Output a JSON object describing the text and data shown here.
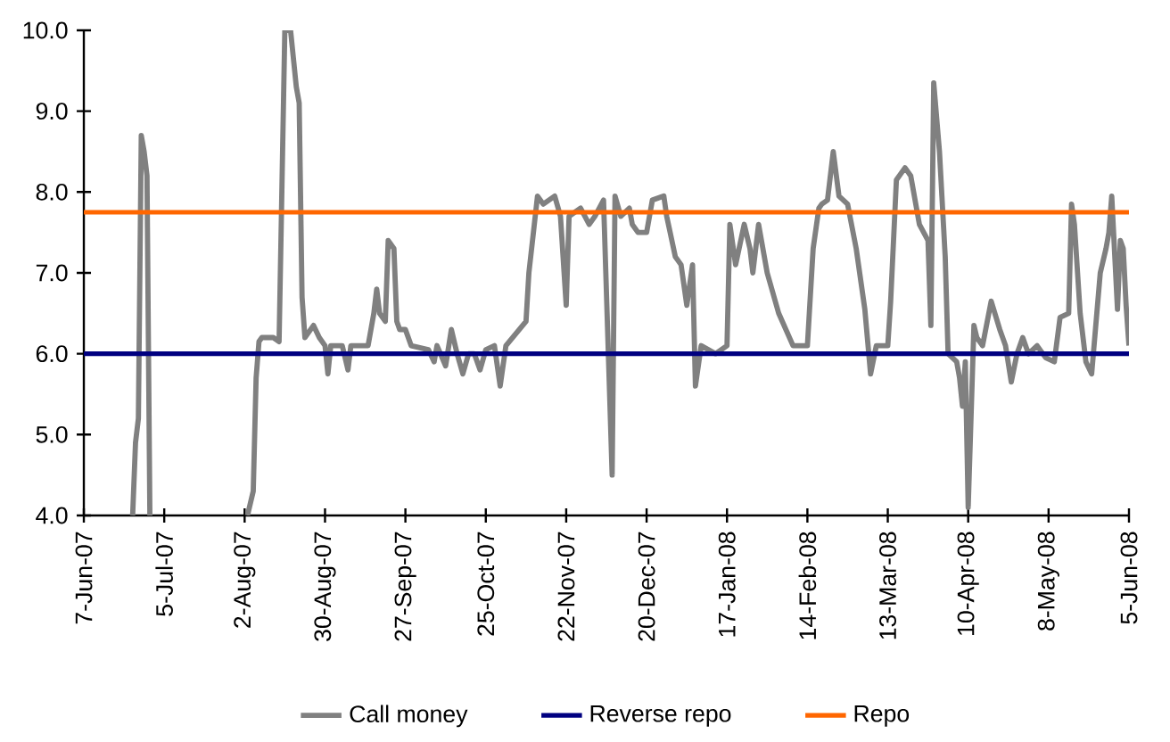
{
  "chart_data": {
    "type": "line",
    "x": [
      "2007-06-24",
      "2007-06-25",
      "2007-06-26",
      "2007-06-27",
      "2007-06-28",
      "2007-06-29",
      "2007-06-30",
      "2007-07-01",
      "2007-08-03",
      "2007-08-05",
      "2007-08-06",
      "2007-08-07",
      "2007-08-08",
      "2007-08-12",
      "2007-08-14",
      "2007-08-16",
      "2007-08-18",
      "2007-08-20",
      "2007-08-21",
      "2007-08-22",
      "2007-08-23",
      "2007-08-26",
      "2007-08-28",
      "2007-08-30",
      "2007-08-31",
      "2007-09-01",
      "2007-09-05",
      "2007-09-07",
      "2007-09-08",
      "2007-09-14",
      "2007-09-16",
      "2007-09-17",
      "2007-09-18",
      "2007-09-20",
      "2007-09-21",
      "2007-09-23",
      "2007-09-24",
      "2007-09-25",
      "2007-09-27",
      "2007-09-29",
      "2007-10-05",
      "2007-10-07",
      "2007-10-08",
      "2007-10-11",
      "2007-10-13",
      "2007-10-15",
      "2007-10-17",
      "2007-10-19",
      "2007-10-21",
      "2007-10-23",
      "2007-10-25",
      "2007-10-28",
      "2007-10-30",
      "2007-11-01",
      "2007-11-08",
      "2007-11-09",
      "2007-11-12",
      "2007-11-14",
      "2007-11-18",
      "2007-11-20",
      "2007-11-22",
      "2007-11-23",
      "2007-11-27",
      "2007-11-30",
      "2007-12-02",
      "2007-12-05",
      "2007-12-08",
      "2007-12-09",
      "2007-12-11",
      "2007-12-14",
      "2007-12-15",
      "2007-12-17",
      "2007-12-20",
      "2007-12-22",
      "2007-12-26",
      "2007-12-27",
      "2007-12-30",
      "2008-01-01",
      "2008-01-03",
      "2008-01-05",
      "2008-01-06",
      "2008-01-08",
      "2008-01-13",
      "2008-01-17",
      "2008-01-18",
      "2008-01-20",
      "2008-01-23",
      "2008-01-25",
      "2008-01-26",
      "2008-01-28",
      "2008-01-31",
      "2008-02-04",
      "2008-02-09",
      "2008-02-14",
      "2008-02-16",
      "2008-02-18",
      "2008-02-19",
      "2008-02-21",
      "2008-02-23",
      "2008-02-25",
      "2008-02-28",
      "2008-03-02",
      "2008-03-05",
      "2008-03-07",
      "2008-03-09",
      "2008-03-13",
      "2008-03-14",
      "2008-03-16",
      "2008-03-19",
      "2008-03-21",
      "2008-03-24",
      "2008-03-27",
      "2008-03-28",
      "2008-03-29",
      "2008-03-31",
      "2008-04-02",
      "2008-04-03",
      "2008-04-06",
      "2008-04-07",
      "2008-04-08",
      "2008-04-09",
      "2008-04-10",
      "2008-04-12",
      "2008-04-13",
      "2008-04-15",
      "2008-04-18",
      "2008-04-21",
      "2008-04-23",
      "2008-04-25",
      "2008-04-27",
      "2008-04-29",
      "2008-05-01",
      "2008-05-04",
      "2008-05-07",
      "2008-05-10",
      "2008-05-12",
      "2008-05-15",
      "2008-05-16",
      "2008-05-17",
      "2008-05-19",
      "2008-05-21",
      "2008-05-23",
      "2008-05-26",
      "2008-05-28",
      "2008-05-29",
      "2008-05-30",
      "2008-06-01",
      "2008-06-02",
      "2008-06-03",
      "2008-06-04",
      "2008-06-05"
    ],
    "series": [
      {
        "name": "Call money",
        "color": "#808080",
        "values": [
          4.0,
          4.9,
          5.2,
          8.7,
          8.5,
          8.2,
          4.0,
          null,
          4.0,
          4.3,
          5.7,
          6.15,
          6.2,
          6.2,
          6.15,
          10.0,
          10.0,
          9.3,
          9.1,
          6.7,
          6.2,
          6.35,
          6.2,
          6.1,
          5.75,
          6.1,
          6.1,
          5.8,
          6.1,
          6.1,
          6.5,
          6.8,
          6.5,
          6.4,
          7.4,
          7.3,
          6.4,
          6.3,
          6.3,
          6.1,
          6.05,
          5.9,
          6.1,
          5.85,
          6.3,
          6.0,
          5.75,
          6.0,
          6.0,
          5.8,
          6.05,
          6.1,
          5.6,
          6.1,
          6.4,
          7.0,
          7.95,
          7.85,
          7.95,
          7.7,
          6.6,
          7.7,
          7.8,
          7.6,
          7.7,
          7.9,
          4.5,
          7.95,
          7.7,
          7.8,
          7.6,
          7.5,
          7.5,
          7.9,
          7.95,
          7.7,
          7.2,
          7.1,
          6.6,
          7.1,
          5.6,
          6.1,
          6.0,
          6.1,
          7.6,
          7.1,
          7.6,
          7.3,
          7.0,
          7.6,
          7.0,
          6.5,
          6.1,
          6.1,
          7.3,
          7.8,
          7.85,
          7.9,
          8.5,
          7.95,
          7.85,
          7.3,
          6.55,
          5.75,
          6.1,
          6.1,
          6.65,
          8.15,
          8.3,
          8.2,
          7.6,
          7.4,
          6.35,
          9.35,
          8.5,
          7.2,
          6.0,
          5.9,
          5.7,
          5.35,
          5.9,
          4.1,
          6.35,
          6.2,
          6.1,
          6.65,
          6.3,
          6.1,
          5.65,
          6.0,
          6.2,
          6.0,
          6.1,
          5.95,
          5.9,
          6.45,
          6.5,
          7.85,
          7.6,
          6.5,
          5.9,
          5.75,
          7.0,
          7.3,
          7.5,
          7.95,
          6.55,
          7.4,
          7.3,
          6.6,
          6.1
        ]
      },
      {
        "name": "Reverse repo",
        "color": "#000080",
        "x": [
          "2007-06-07",
          "2008-06-05"
        ],
        "values": [
          6.0,
          6.0
        ]
      },
      {
        "name": "Repo",
        "color": "#ff6600",
        "x": [
          "2007-06-07",
          "2008-06-05"
        ],
        "values": [
          7.75,
          7.75
        ]
      }
    ],
    "xlim": [
      "2007-06-07",
      "2008-06-05"
    ],
    "xticks": [
      {
        "value": "2007-06-07",
        "label": "7-Jun-07"
      },
      {
        "value": "2007-07-05",
        "label": "5-Jul-07"
      },
      {
        "value": "2007-08-02",
        "label": "2-Aug-07"
      },
      {
        "value": "2007-08-30",
        "label": "30-Aug-07"
      },
      {
        "value": "2007-09-27",
        "label": "27-Sep-07"
      },
      {
        "value": "2007-10-25",
        "label": "25-Oct-07"
      },
      {
        "value": "2007-11-22",
        "label": "22-Nov-07"
      },
      {
        "value": "2007-12-20",
        "label": "20-Dec-07"
      },
      {
        "value": "2008-01-17",
        "label": "17-Jan-08"
      },
      {
        "value": "2008-02-14",
        "label": "14-Feb-08"
      },
      {
        "value": "2008-03-13",
        "label": "13-Mar-08"
      },
      {
        "value": "2008-04-10",
        "label": "10-Apr-08"
      },
      {
        "value": "2008-05-08",
        "label": "8-May-08"
      },
      {
        "value": "2008-06-05",
        "label": "5-Jun-08"
      }
    ],
    "ylim": [
      4,
      10
    ],
    "yticks": [
      {
        "value": 4,
        "label": "4.0"
      },
      {
        "value": 5,
        "label": "5.0"
      },
      {
        "value": 6,
        "label": "6.0"
      },
      {
        "value": 7,
        "label": "7.0"
      },
      {
        "value": 8,
        "label": "8.0"
      },
      {
        "value": 9,
        "label": "9.0"
      },
      {
        "value": 10,
        "label": "10.0"
      }
    ],
    "legend": "bottom"
  }
}
